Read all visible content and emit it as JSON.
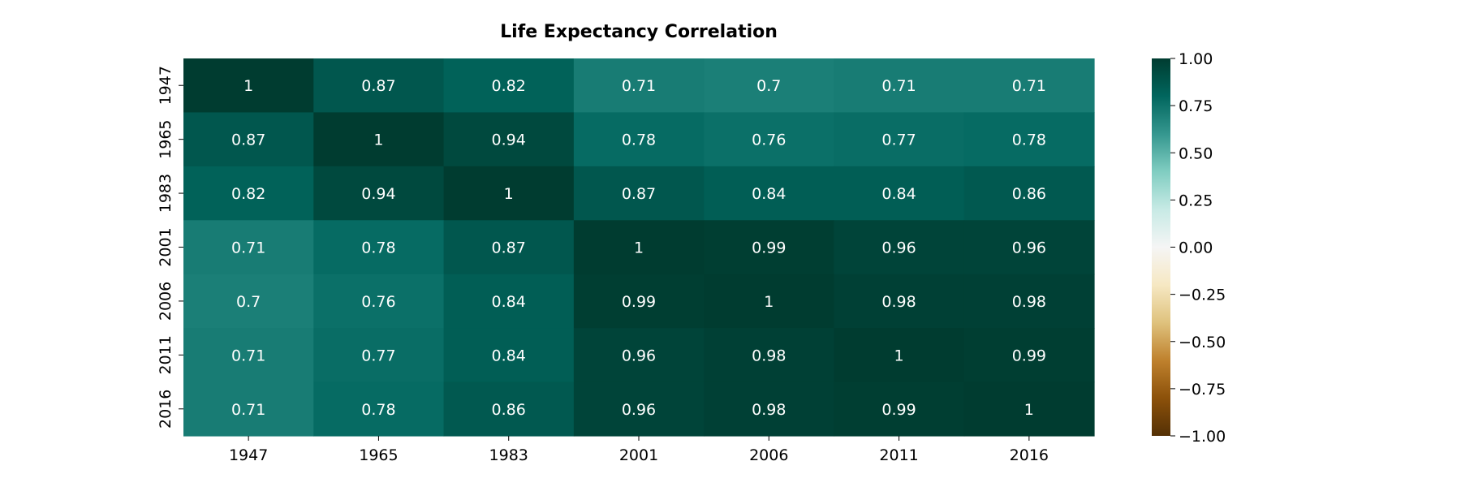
{
  "chart_data": {
    "type": "heatmap",
    "title": "Life Expectancy Correlation",
    "xlabel": "",
    "ylabel": "",
    "x_labels": [
      "1947",
      "1965",
      "1983",
      "2001",
      "2006",
      "2011",
      "2016"
    ],
    "y_labels": [
      "1947",
      "1965",
      "1983",
      "2001",
      "2006",
      "2011",
      "2016"
    ],
    "values": [
      [
        1,
        0.87,
        0.82,
        0.71,
        0.7,
        0.71,
        0.71
      ],
      [
        0.87,
        1,
        0.94,
        0.78,
        0.76,
        0.77,
        0.78
      ],
      [
        0.82,
        0.94,
        1,
        0.87,
        0.84,
        0.84,
        0.86
      ],
      [
        0.71,
        0.78,
        0.87,
        1,
        0.99,
        0.96,
        0.96
      ],
      [
        0.7,
        0.76,
        0.84,
        0.99,
        1,
        0.98,
        0.98
      ],
      [
        0.71,
        0.77,
        0.84,
        0.96,
        0.98,
        1,
        0.99
      ],
      [
        0.71,
        0.78,
        0.86,
        0.96,
        0.98,
        0.99,
        1
      ]
    ],
    "annotations": true,
    "colorbar": {
      "range": [
        -1,
        1
      ],
      "ticks": [
        1,
        0.75,
        0.5,
        0.25,
        0,
        -0.25,
        -0.5,
        -0.75,
        -1
      ],
      "tick_labels": [
        "1.00",
        "0.75",
        "0.50",
        "0.25",
        "0.00",
        "−0.25",
        "−0.50",
        "−0.75",
        "−1.00"
      ]
    },
    "colormap": "BrBG",
    "colormap_stops": [
      "#543005",
      "#8c510a",
      "#bf812d",
      "#dfc27d",
      "#f6e8c3",
      "#f5f5f5",
      "#c7eae5",
      "#80cdc1",
      "#35978f",
      "#01665e",
      "#003c30"
    ],
    "grid": false
  }
}
